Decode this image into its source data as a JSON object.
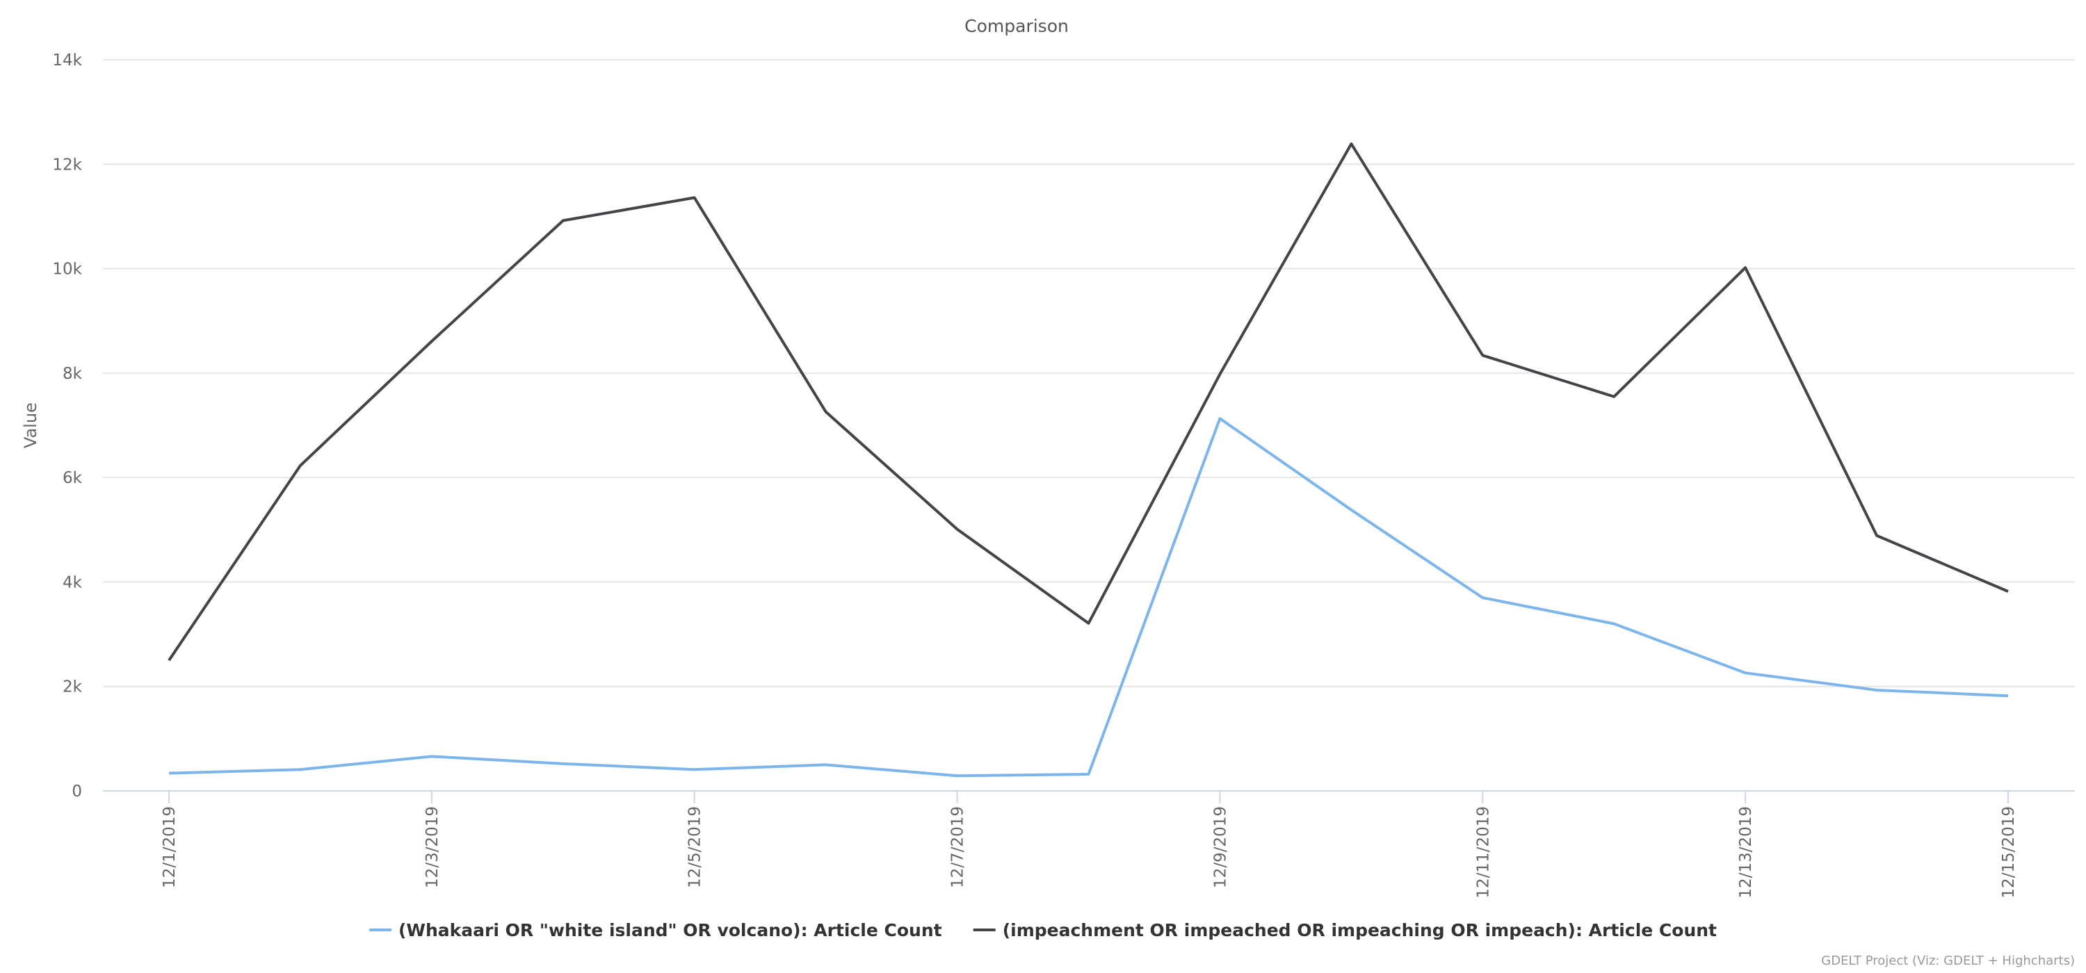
{
  "chart_data": {
    "type": "line",
    "title": "Comparison",
    "ylabel": "Value",
    "ylim": [
      0,
      14000
    ],
    "yticks": [
      0,
      2000,
      4000,
      6000,
      8000,
      10000,
      12000,
      14000
    ],
    "ytick_labels": [
      "0",
      "2k",
      "4k",
      "6k",
      "8k",
      "10k",
      "12k",
      "14k"
    ],
    "x": [
      "12/1/2019",
      "12/2/2019",
      "12/3/2019",
      "12/4/2019",
      "12/5/2019",
      "12/6/2019",
      "12/7/2019",
      "12/8/2019",
      "12/9/2019",
      "12/10/2019",
      "12/11/2019",
      "12/12/2019",
      "12/13/2019",
      "12/14/2019",
      "12/15/2019"
    ],
    "xtick_labels": [
      "12/1/2019",
      "",
      "12/3/2019",
      "",
      "12/5/2019",
      "",
      "12/7/2019",
      "",
      "12/9/2019",
      "",
      "12/11/2019",
      "",
      "12/13/2019",
      "",
      "12/15/2019"
    ],
    "grid": true,
    "legend_position": "bottom",
    "series": [
      {
        "name": "(Whakaari OR \"white island\" OR volcano): Article Count",
        "color": "#7cb5ec",
        "values": [
          340,
          410,
          660,
          520,
          410,
          500,
          290,
          320,
          7130,
          5380,
          3700,
          3200,
          2260,
          1930,
          1820
        ]
      },
      {
        "name": "(impeachment OR impeached OR impeaching OR impeach): Article Count",
        "color": "#434348",
        "values": [
          2500,
          6230,
          8610,
          10920,
          11360,
          7260,
          5010,
          3210,
          7980,
          12390,
          8340,
          7550,
          10020,
          4890,
          3820
        ]
      }
    ],
    "credits": "GDELT Project (Viz: GDELT + Highcharts)"
  }
}
